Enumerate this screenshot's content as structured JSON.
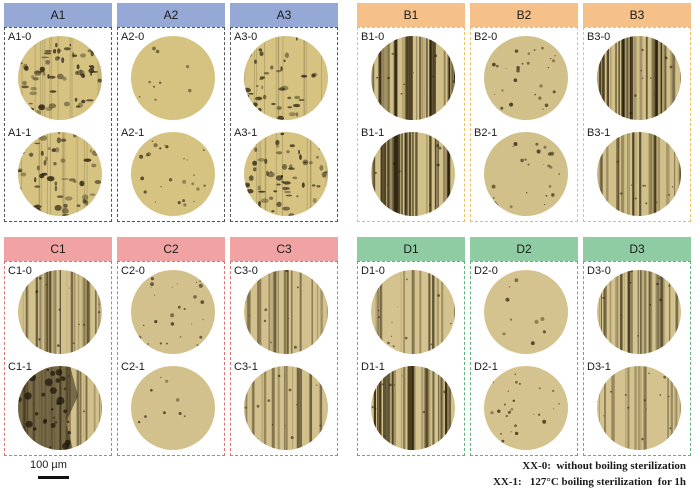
{
  "groups": [
    {
      "header_color": "#95a8d6",
      "border_color": "#555555",
      "disc_tone": "#d6c382",
      "columns": [
        {
          "header": "A1",
          "labels": [
            "A1-0",
            "A1-1"
          ],
          "textures": [
            "pitted-heavy",
            "pitted-heavy"
          ]
        },
        {
          "header": "A2",
          "labels": [
            "A2-0",
            "A2-1"
          ],
          "textures": [
            "smooth",
            "smooth-dots"
          ]
        },
        {
          "header": "A3",
          "labels": [
            "A3-0",
            "A3-1"
          ],
          "textures": [
            "pitted",
            "pitted-heavy"
          ]
        }
      ]
    },
    {
      "header_color": "#f5c188",
      "border_color": "#f0c060",
      "disc_tone": "#d2c08a",
      "columns": [
        {
          "header": "B1",
          "labels": [
            "B1-0",
            "B1-1"
          ],
          "textures": [
            "streaked-dark",
            "streaked-dark"
          ]
        },
        {
          "header": "B2",
          "labels": [
            "B2-0",
            "B2-1"
          ],
          "textures": [
            "smooth-dots",
            "smooth-dots"
          ]
        },
        {
          "header": "B3",
          "labels": [
            "B3-0",
            "B3-1"
          ],
          "textures": [
            "streaked-dark",
            "streaked"
          ]
        }
      ]
    },
    {
      "header_color": "#f1a3a3",
      "border_color": "#e07070",
      "disc_tone": "#d3c18d",
      "columns": [
        {
          "header": "C1",
          "labels": [
            "C1-0",
            "C1-1"
          ],
          "textures": [
            "streaked",
            "corroded"
          ]
        },
        {
          "header": "C2",
          "labels": [
            "C2-0",
            "C2-1"
          ],
          "textures": [
            "smooth-dots",
            "smooth"
          ]
        },
        {
          "header": "C3",
          "labels": [
            "C3-0",
            "C3-1"
          ],
          "textures": [
            "streaked-light",
            "streaked-light"
          ]
        }
      ]
    },
    {
      "header_color": "#8fcca3",
      "border_color": "#60b080",
      "disc_tone": "#d4c38e",
      "columns": [
        {
          "header": "D1",
          "labels": [
            "D1-0",
            "D1-1"
          ],
          "textures": [
            "streaked-light",
            "streaked-dark"
          ]
        },
        {
          "header": "D2",
          "labels": [
            "D2-0",
            "D2-1"
          ],
          "textures": [
            "smooth",
            "smooth-dots"
          ]
        },
        {
          "header": "D3",
          "labels": [
            "D3-0",
            "D3-1"
          ],
          "textures": [
            "streaked",
            "streaked-light"
          ]
        }
      ]
    }
  ],
  "scale_bar": {
    "label": "100 µm"
  },
  "legend": {
    "line1": "XX-0:  without boiling sterilization",
    "line2": "XX-1:   127°C boiling sterilization  for 1h"
  }
}
